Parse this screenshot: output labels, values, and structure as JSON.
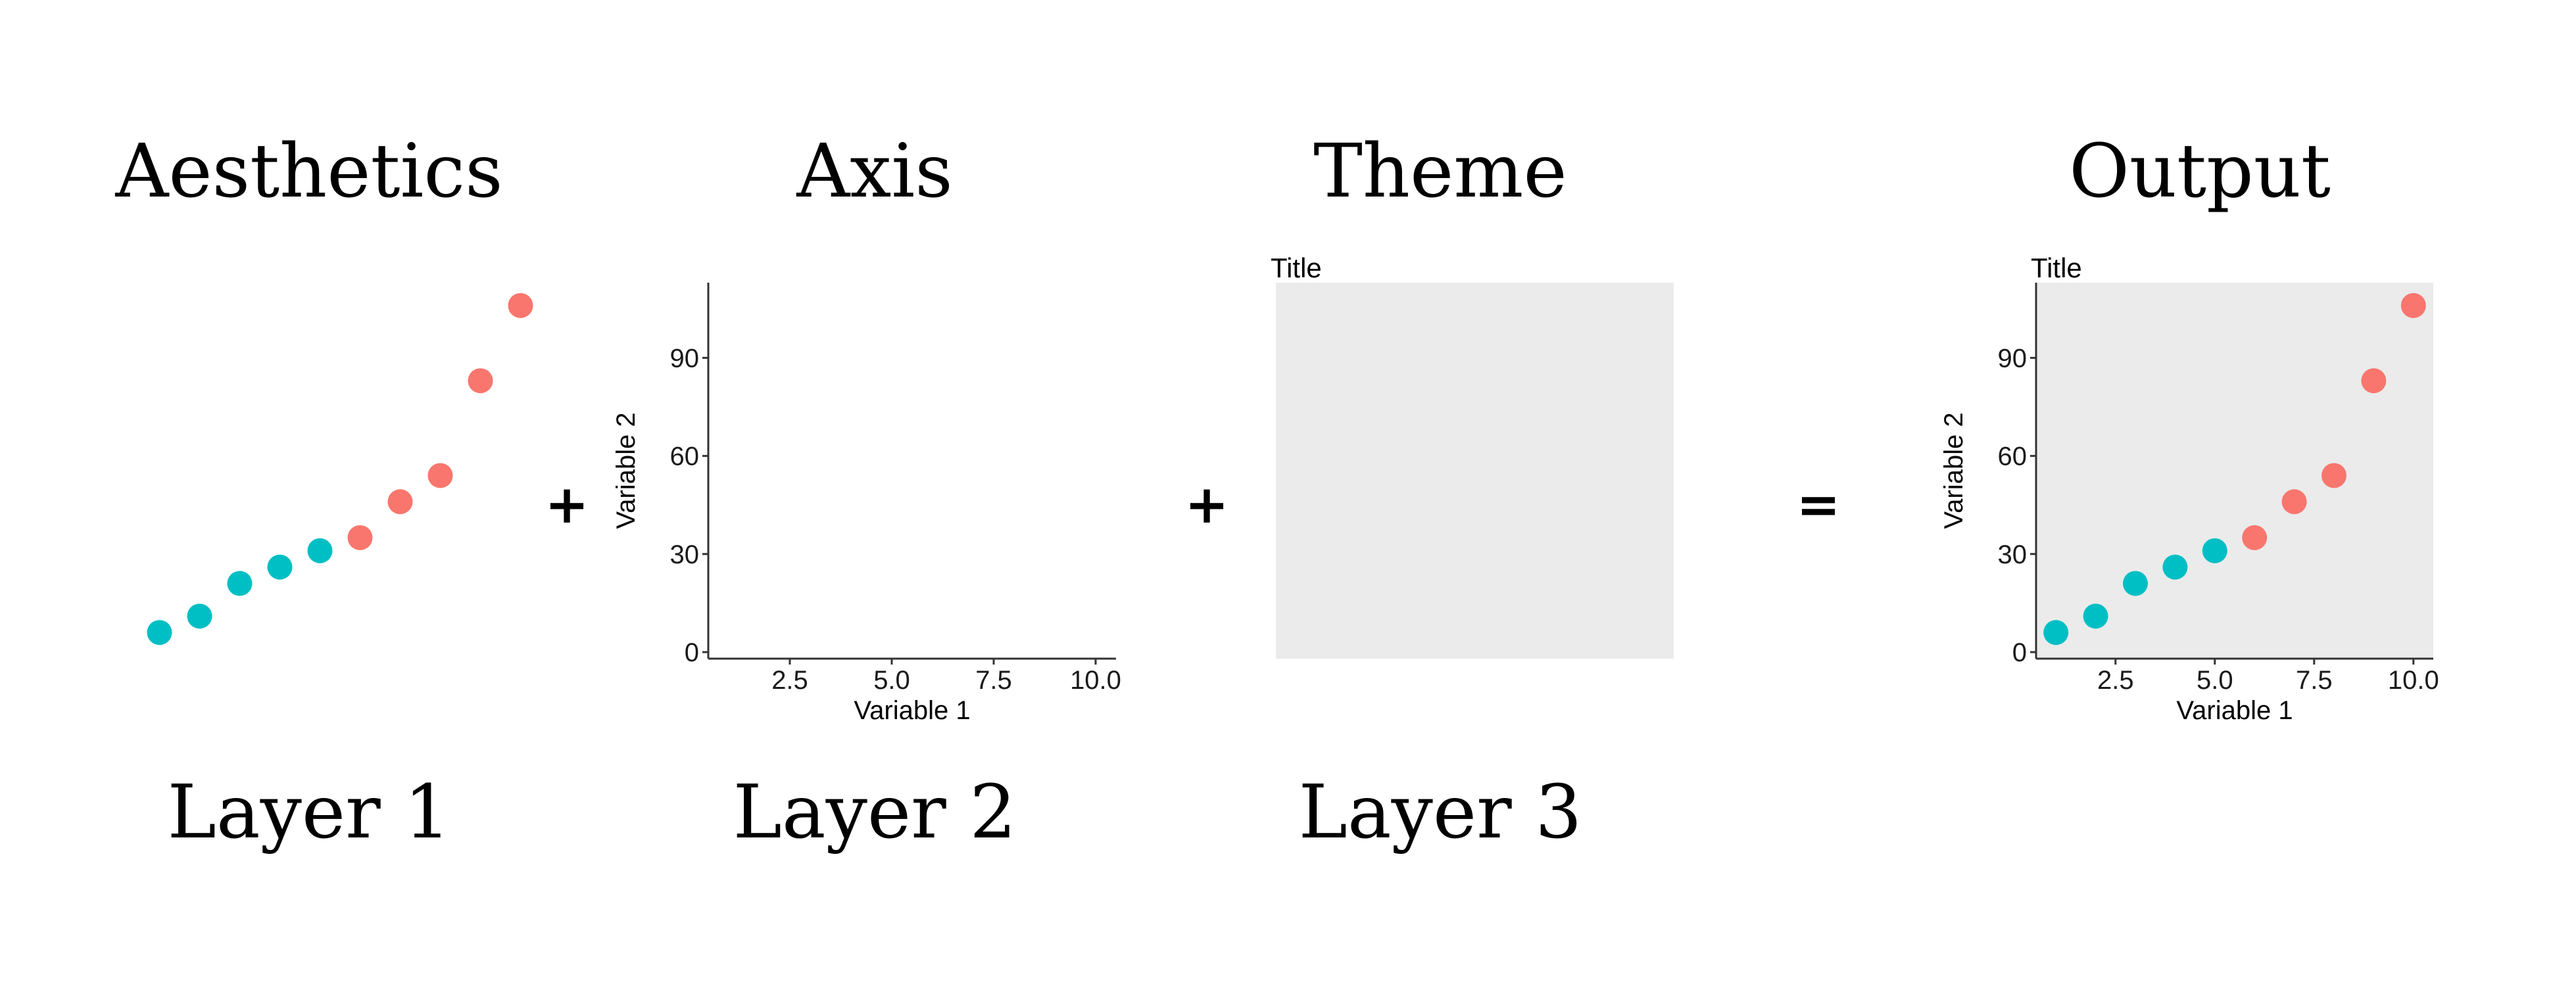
{
  "headings": {
    "aesthetics": "Aesthetics",
    "axis": "Axis",
    "theme": "Theme",
    "output": "Output"
  },
  "layers": {
    "layer1": "Layer 1",
    "layer2": "Layer 2",
    "layer3": "Layer 3"
  },
  "operators": {
    "plus1": "+",
    "plus2": "+",
    "equals": "="
  },
  "colors": {
    "group_low": "#00BFC4",
    "group_high": "#F8766D",
    "panel_bg": "#EBEBEB",
    "axis_line": "#333333"
  },
  "chart_data": {
    "type": "scatter",
    "title": "Title",
    "xlabel": "Variable 1",
    "ylabel": "Variable 2",
    "xlim": [
      0.5,
      10.5
    ],
    "ylim": [
      -2,
      113
    ],
    "xticks": [
      "2.5",
      "5.0",
      "7.5",
      "10.0"
    ],
    "xtick_values": [
      2.5,
      5.0,
      7.5,
      10.0
    ],
    "yticks": [
      "0",
      "30",
      "60",
      "90"
    ],
    "ytick_values": [
      0,
      30,
      60,
      90
    ],
    "points": [
      {
        "x": 1,
        "y": 6,
        "group": "low"
      },
      {
        "x": 2,
        "y": 11,
        "group": "low"
      },
      {
        "x": 3,
        "y": 21,
        "group": "low"
      },
      {
        "x": 4,
        "y": 26,
        "group": "low"
      },
      {
        "x": 5,
        "y": 31,
        "group": "low"
      },
      {
        "x": 6,
        "y": 35,
        "group": "high"
      },
      {
        "x": 7,
        "y": 46,
        "group": "high"
      },
      {
        "x": 8,
        "y": 54,
        "group": "high"
      },
      {
        "x": 9,
        "y": 83,
        "group": "high"
      },
      {
        "x": 10,
        "y": 106,
        "group": "high"
      }
    ]
  }
}
